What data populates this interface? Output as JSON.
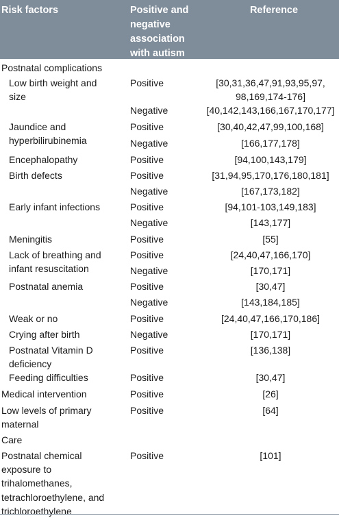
{
  "table": {
    "headers": {
      "risk_factors": [
        "Risk factors"
      ],
      "association": [
        "Positive and",
        "negative",
        "association",
        "with autism"
      ],
      "reference": [
        "Reference"
      ]
    },
    "rows": [
      {
        "factor": [
          "Postnatal complications"
        ],
        "assoc": "",
        "ref": [],
        "indent": false
      },
      {
        "factor": [
          "Low birth weight and",
          "size"
        ],
        "assoc": "Positive",
        "ref": [
          "[30,31,36,47,91,93,95,97,",
          "98,169,174-176]"
        ],
        "indent": true
      },
      {
        "factor": [],
        "assoc": "Negative",
        "ref": [
          "[40,142,143,166,167,170,177]"
        ],
        "indent": true
      },
      {
        "factor": [
          "Jaundice and",
          "hyperbilirubinemia"
        ],
        "assoc": "Positive",
        "ref": [
          "[30,40,42,47,99,100,168]"
        ],
        "indent": true
      },
      {
        "factor": [],
        "assoc": "Negative",
        "ref": [
          "[166,177,178]"
        ],
        "indent": true
      },
      {
        "factor": [
          "Encephalopathy"
        ],
        "assoc": "Positive",
        "ref": [
          "[94,100,143,179]"
        ],
        "indent": true
      },
      {
        "factor": [
          "Birth defects"
        ],
        "assoc": "Positive",
        "ref": [
          "[31,94,95,170,176,180,181]"
        ],
        "indent": true
      },
      {
        "factor": [],
        "assoc": "Negative",
        "ref": [
          "[167,173,182]"
        ],
        "indent": true
      },
      {
        "factor": [
          "Early infant infections"
        ],
        "assoc": "Positive",
        "ref": [
          "[94,101-103,149,183]"
        ],
        "indent": true
      },
      {
        "factor": [],
        "assoc": "Negative",
        "ref": [
          "[143,177]"
        ],
        "indent": true
      },
      {
        "factor": [
          "Meningitis"
        ],
        "assoc": "Positive",
        "ref": [
          "[55]"
        ],
        "indent": true
      },
      {
        "factor": [
          "Lack of breathing and",
          "infant resuscitation"
        ],
        "assoc": "Positive",
        "ref": [
          "[24,40,47,166,170]"
        ],
        "indent": true
      },
      {
        "factor": [],
        "assoc": "Negative",
        "ref": [
          "[170,171]"
        ],
        "indent": true
      },
      {
        "factor": [
          "Postnatal anemia"
        ],
        "assoc": "Positive",
        "ref": [
          "[30,47]"
        ],
        "indent": true
      },
      {
        "factor": [],
        "assoc": "Negative",
        "ref": [
          "[143,184,185]"
        ],
        "indent": true
      },
      {
        "factor": [
          "Weak or no"
        ],
        "assoc": "Positive",
        "ref": [
          "[24,40,47,166,170,186]"
        ],
        "indent": true
      },
      {
        "factor": [
          "Crying after birth"
        ],
        "assoc": "Negative",
        "ref": [
          "[170,171]"
        ],
        "indent": true
      },
      {
        "factor": [
          "Postnatal Vitamin D",
          "deficiency"
        ],
        "assoc": "Positive",
        "ref": [
          "[136,138]"
        ],
        "indent": true
      },
      {
        "factor": [
          "Feeding difficulties"
        ],
        "assoc": "Positive",
        "ref": [
          "[30,47]"
        ],
        "indent": true
      },
      {
        "factor": [
          "Medical intervention"
        ],
        "assoc": "Positive",
        "ref": [
          "[26]"
        ],
        "indent": false
      },
      {
        "factor": [
          "Low levels of primary",
          "maternal"
        ],
        "assoc": "Positive",
        "ref": [
          "[64]"
        ],
        "indent": false
      },
      {
        "factor": [
          "Care"
        ],
        "assoc": "",
        "ref": [],
        "indent": false
      },
      {
        "factor": [
          "Postnatal chemical",
          "exposure to",
          "trihalomethanes,",
          "tetrachloroethylene, and",
          "trichloroethylene"
        ],
        "assoc": "Positive",
        "ref": [
          "[101]"
        ],
        "indent": false
      }
    ]
  }
}
